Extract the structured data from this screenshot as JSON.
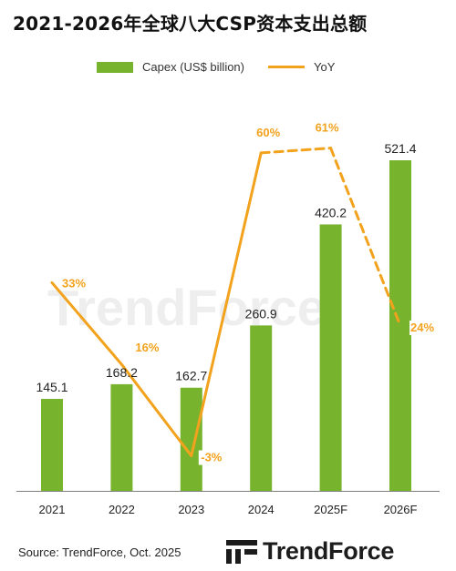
{
  "title": "2021-2026年全球八大CSP资本支出总额",
  "source": "Source: TrendForce, Oct. 2025",
  "watermark": "TrendForce",
  "brand": {
    "name": "TrendForce",
    "icon": "trendforce-logo-icon"
  },
  "colors": {
    "bar": "#78b32e",
    "line": "#f2a21c",
    "axis": "#7f7f7f",
    "watermark": "#eeeeee"
  },
  "chart_data": {
    "type": "bar",
    "categories": [
      "2021",
      "2022",
      "2023",
      "2024",
      "2025F",
      "2026F"
    ],
    "series": [
      {
        "name": "Capex (US$ billion)",
        "type": "bar",
        "values": [
          145.1,
          168.2,
          162.7,
          260.9,
          420.2,
          521.4
        ],
        "labels": [
          "145.1",
          "168.2",
          "162.7",
          "260.9",
          "420.2",
          "521.4"
        ]
      },
      {
        "name": "YoY",
        "type": "line",
        "values": [
          33,
          16,
          -3,
          60,
          61,
          24
        ],
        "labels": [
          "33%",
          "16%",
          "-3%",
          "60%",
          "61%",
          "24%"
        ],
        "dashed_from": "2024"
      }
    ],
    "legend_position": "top-center",
    "grid": false
  }
}
